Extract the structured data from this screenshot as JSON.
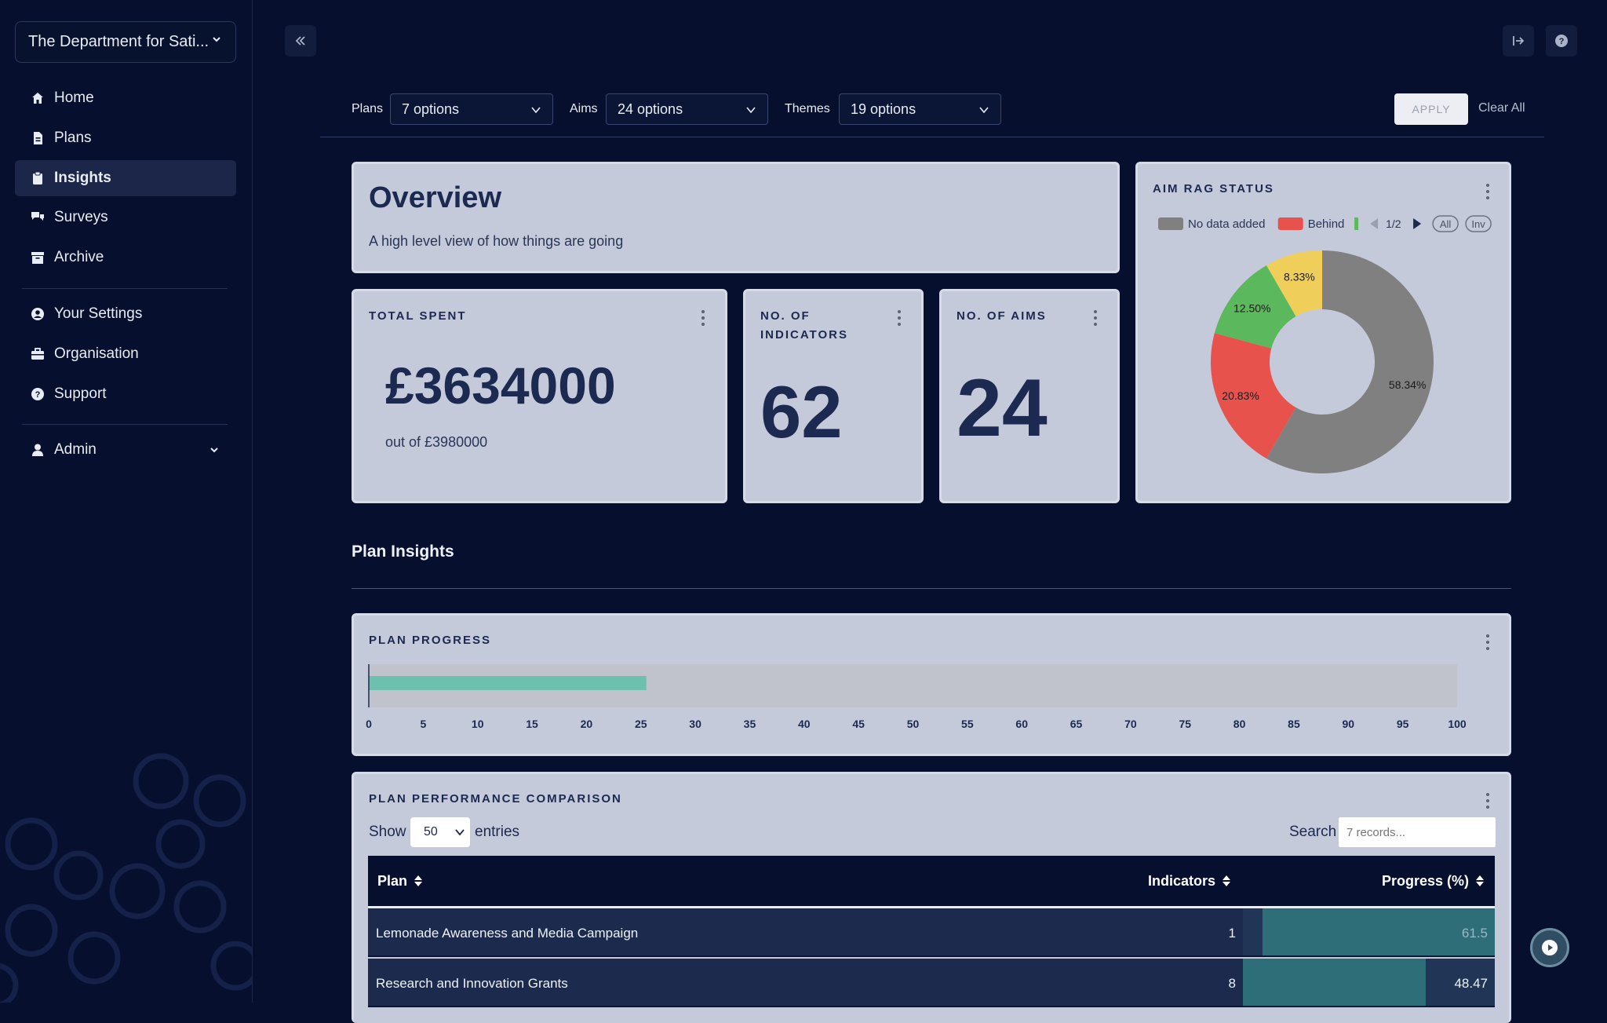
{
  "sidebar": {
    "org_name": "The Department for Sati...",
    "nav": [
      {
        "label": "Home",
        "icon": "home-icon"
      },
      {
        "label": "Plans",
        "icon": "document-icon"
      },
      {
        "label": "Insights",
        "icon": "clipboard-icon",
        "active": true
      },
      {
        "label": "Surveys",
        "icon": "chat-icon"
      },
      {
        "label": "Archive",
        "icon": "archive-icon"
      }
    ],
    "nav2": [
      {
        "label": "Your Settings",
        "icon": "user-circle-icon"
      },
      {
        "label": "Organisation",
        "icon": "briefcase-icon"
      },
      {
        "label": "Support",
        "icon": "question-circle-icon"
      }
    ],
    "admin_label": "Admin"
  },
  "filters": {
    "plans_label": "Plans",
    "plans_value": "7 options",
    "aims_label": "Aims",
    "aims_value": "24 options",
    "themes_label": "Themes",
    "themes_value": "19 options",
    "apply_label": "APPLY",
    "clear_label": "Clear All"
  },
  "overview": {
    "title": "Overview",
    "subtitle": "A high level view of how things are going"
  },
  "total_spent": {
    "title": "TOTAL SPENT",
    "value": "£3634000",
    "sub": "out of £3980000"
  },
  "indicators": {
    "title": "NO. OF INDICATORS",
    "value": "62"
  },
  "aims": {
    "title": "NO. OF AIMS",
    "value": "24"
  },
  "rag": {
    "title": "AIM RAG STATUS",
    "legend": [
      {
        "label": "No data added",
        "color": "#808080"
      },
      {
        "label": "Behind",
        "color": "#e8524d"
      }
    ],
    "legend_next_color": "#5cb85c",
    "page": "1/2",
    "all_label": "All",
    "inv_label": "Inv"
  },
  "chart_data": [
    {
      "type": "pie",
      "title": "AIM RAG STATUS",
      "slices": [
        {
          "name": "No data added",
          "value": 58.34,
          "label": "58.34%",
          "color": "#808080"
        },
        {
          "name": "Behind",
          "value": 20.83,
          "label": "20.83%",
          "color": "#e8524d"
        },
        {
          "name": "",
          "value": 12.5,
          "label": "12.50%",
          "color": "#5cb85c"
        },
        {
          "name": "",
          "value": 8.33,
          "label": "8.33%",
          "color": "#f0ce5a"
        }
      ]
    },
    {
      "type": "bar",
      "title": "PLAN PROGRESS",
      "orientation": "horizontal",
      "values": [
        25.5
      ],
      "color": "#6dbfae",
      "xlim": [
        0,
        100
      ],
      "xticks": [
        "0",
        "5",
        "10",
        "15",
        "20",
        "25",
        "30",
        "35",
        "40",
        "45",
        "50",
        "55",
        "60",
        "65",
        "70",
        "75",
        "80",
        "85",
        "90",
        "95",
        "100"
      ]
    }
  ],
  "plan_insights_title": "Plan Insights",
  "plan_progress_title": "PLAN PROGRESS",
  "comparison": {
    "title": "PLAN PERFORMANCE COMPARISON",
    "show_label": "Show",
    "entries_value": "50",
    "entries_label": "entries",
    "search_label": "Search",
    "search_placeholder": "7 records...",
    "columns": [
      "Plan",
      "Indicators",
      "Progress (%)"
    ],
    "rows": [
      {
        "plan": "Lemonade Awareness and Media Campaign",
        "indicators": "1",
        "progress": "61.5",
        "progress_value": 61.5
      },
      {
        "plan": "Research and Innovation Grants",
        "indicators": "8",
        "progress": "48.47",
        "progress_value": 48.47
      }
    ]
  }
}
